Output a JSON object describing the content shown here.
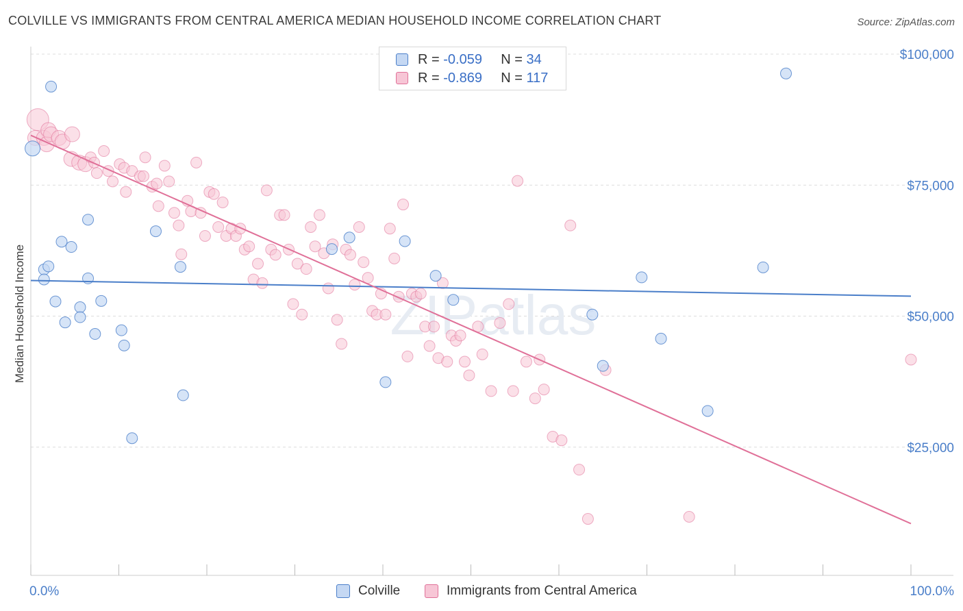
{
  "title": "COLVILLE VS IMMIGRANTS FROM CENTRAL AMERICA MEDIAN HOUSEHOLD INCOME CORRELATION CHART",
  "source": "Source: ZipAtlas.com",
  "watermark": "ZIPatlas",
  "legend": {
    "rows": [
      {
        "r_label": "R =",
        "r_value": "-0.059",
        "n_label": "N =",
        "n_value": "34"
      },
      {
        "r_label": "R =",
        "r_value": "-0.869",
        "n_label": "N =",
        "n_value": "117"
      }
    ]
  },
  "bottom_legend": {
    "colville": "Colville",
    "immigrants": "Immigrants from Central America"
  },
  "chart_data": {
    "type": "scatter",
    "ylabel": "Median Household Income",
    "xlim": [
      0,
      100
    ],
    "ylim": [
      0,
      105000
    ],
    "x_tick_labels": [
      "0.0%",
      "100.0%"
    ],
    "y_ticks": [
      25000,
      50000,
      75000,
      100000
    ],
    "y_tick_labels": [
      "$25,000",
      "$50,000",
      "$75,000",
      "$100,000"
    ],
    "grid": true,
    "colors": {
      "colville": "#4a7ec9",
      "immigrants": "#e07098",
      "colville_fill": "#c5d8f3",
      "immigrants_fill": "#f7c6d6"
    },
    "series": [
      {
        "name": "Colville",
        "trend": {
          "x": [
            0,
            100
          ],
          "y": [
            56800,
            53800
          ]
        },
        "points": [
          [
            0.2,
            82000
          ],
          [
            1.5,
            58900
          ],
          [
            1.5,
            57000
          ],
          [
            2.0,
            59500
          ],
          [
            2.3,
            93800
          ],
          [
            2.8,
            52800
          ],
          [
            3.5,
            64200
          ],
          [
            3.9,
            48800
          ],
          [
            4.6,
            63200
          ],
          [
            5.6,
            51700
          ],
          [
            5.6,
            49800
          ],
          [
            6.5,
            57200
          ],
          [
            6.5,
            68400
          ],
          [
            7.3,
            46600
          ],
          [
            8.0,
            52900
          ],
          [
            10.3,
            47300
          ],
          [
            10.6,
            44400
          ],
          [
            11.5,
            26700
          ],
          [
            14.2,
            66200
          ],
          [
            17.0,
            59400
          ],
          [
            17.3,
            34900
          ],
          [
            34.2,
            62800
          ],
          [
            36.2,
            65000
          ],
          [
            40.3,
            37400
          ],
          [
            42.5,
            64300
          ],
          [
            46.0,
            57700
          ],
          [
            48.0,
            53100
          ],
          [
            63.8,
            50300
          ],
          [
            65.0,
            40500
          ],
          [
            69.4,
            57400
          ],
          [
            71.6,
            45700
          ],
          [
            76.9,
            31900
          ],
          [
            83.2,
            59300
          ],
          [
            85.8,
            96300
          ]
        ]
      },
      {
        "name": "Immigrants from Central America",
        "trend": {
          "x": [
            0,
            100
          ],
          "y": [
            84500,
            10400
          ]
        },
        "points": [
          [
            0.8,
            87500
          ],
          [
            0.5,
            84000
          ],
          [
            1.5,
            84000
          ],
          [
            1.8,
            82800
          ],
          [
            2.0,
            85500
          ],
          [
            2.3,
            84700
          ],
          [
            3.2,
            84000
          ],
          [
            3.6,
            83300
          ],
          [
            4.6,
            80000
          ],
          [
            4.7,
            84700
          ],
          [
            5.5,
            79300
          ],
          [
            6.2,
            79000
          ],
          [
            6.8,
            80300
          ],
          [
            7.2,
            79300
          ],
          [
            7.5,
            77300
          ],
          [
            8.3,
            81500
          ],
          [
            8.8,
            77700
          ],
          [
            9.3,
            75700
          ],
          [
            10.1,
            79000
          ],
          [
            10.6,
            78300
          ],
          [
            10.8,
            73700
          ],
          [
            11.5,
            77700
          ],
          [
            12.4,
            76700
          ],
          [
            12.8,
            76700
          ],
          [
            13.0,
            80300
          ],
          [
            13.8,
            74700
          ],
          [
            14.3,
            75300
          ],
          [
            14.5,
            71000
          ],
          [
            15.2,
            78700
          ],
          [
            15.7,
            75700
          ],
          [
            16.3,
            69700
          ],
          [
            16.8,
            67300
          ],
          [
            17.1,
            61800
          ],
          [
            17.8,
            72000
          ],
          [
            18.2,
            70000
          ],
          [
            18.8,
            79300
          ],
          [
            19.3,
            69700
          ],
          [
            19.8,
            65300
          ],
          [
            20.3,
            73700
          ],
          [
            20.8,
            73300
          ],
          [
            21.3,
            67000
          ],
          [
            21.8,
            71700
          ],
          [
            22.2,
            65300
          ],
          [
            22.8,
            66700
          ],
          [
            23.3,
            65300
          ],
          [
            23.8,
            66700
          ],
          [
            24.3,
            62700
          ],
          [
            24.8,
            63300
          ],
          [
            25.3,
            57000
          ],
          [
            25.8,
            60000
          ],
          [
            26.3,
            56300
          ],
          [
            26.8,
            74000
          ],
          [
            27.3,
            62700
          ],
          [
            27.8,
            61700
          ],
          [
            28.3,
            69300
          ],
          [
            28.8,
            69300
          ],
          [
            29.3,
            62700
          ],
          [
            29.8,
            52300
          ],
          [
            30.3,
            60000
          ],
          [
            30.8,
            50300
          ],
          [
            31.3,
            59000
          ],
          [
            31.8,
            67000
          ],
          [
            32.3,
            63300
          ],
          [
            32.8,
            69300
          ],
          [
            33.3,
            62000
          ],
          [
            33.8,
            55300
          ],
          [
            34.3,
            63700
          ],
          [
            34.8,
            49300
          ],
          [
            35.3,
            44700
          ],
          [
            35.8,
            62700
          ],
          [
            36.3,
            61700
          ],
          [
            36.8,
            56000
          ],
          [
            37.3,
            67000
          ],
          [
            37.8,
            60300
          ],
          [
            38.3,
            57300
          ],
          [
            38.8,
            51000
          ],
          [
            39.3,
            50300
          ],
          [
            39.8,
            54300
          ],
          [
            40.3,
            50300
          ],
          [
            40.8,
            66700
          ],
          [
            41.3,
            61000
          ],
          [
            41.8,
            53700
          ],
          [
            42.3,
            71300
          ],
          [
            42.8,
            42300
          ],
          [
            43.3,
            54300
          ],
          [
            43.8,
            53700
          ],
          [
            44.3,
            54300
          ],
          [
            44.8,
            48000
          ],
          [
            45.3,
            44300
          ],
          [
            45.8,
            48000
          ],
          [
            46.3,
            42000
          ],
          [
            46.8,
            56300
          ],
          [
            47.3,
            41300
          ],
          [
            47.8,
            46300
          ],
          [
            48.3,
            45300
          ],
          [
            48.8,
            46300
          ],
          [
            49.3,
            41300
          ],
          [
            49.8,
            38700
          ],
          [
            50.8,
            48000
          ],
          [
            51.3,
            42700
          ],
          [
            52.3,
            35700
          ],
          [
            53.3,
            48700
          ],
          [
            54.3,
            52300
          ],
          [
            54.8,
            35700
          ],
          [
            55.3,
            75800
          ],
          [
            56.3,
            41300
          ],
          [
            57.3,
            34300
          ],
          [
            57.8,
            41700
          ],
          [
            58.3,
            36000
          ],
          [
            59.3,
            27000
          ],
          [
            60.3,
            26300
          ],
          [
            61.3,
            67300
          ],
          [
            62.3,
            20700
          ],
          [
            63.3,
            11300
          ],
          [
            65.3,
            39700
          ],
          [
            74.8,
            11700
          ],
          [
            100.0,
            41700
          ]
        ]
      }
    ]
  }
}
